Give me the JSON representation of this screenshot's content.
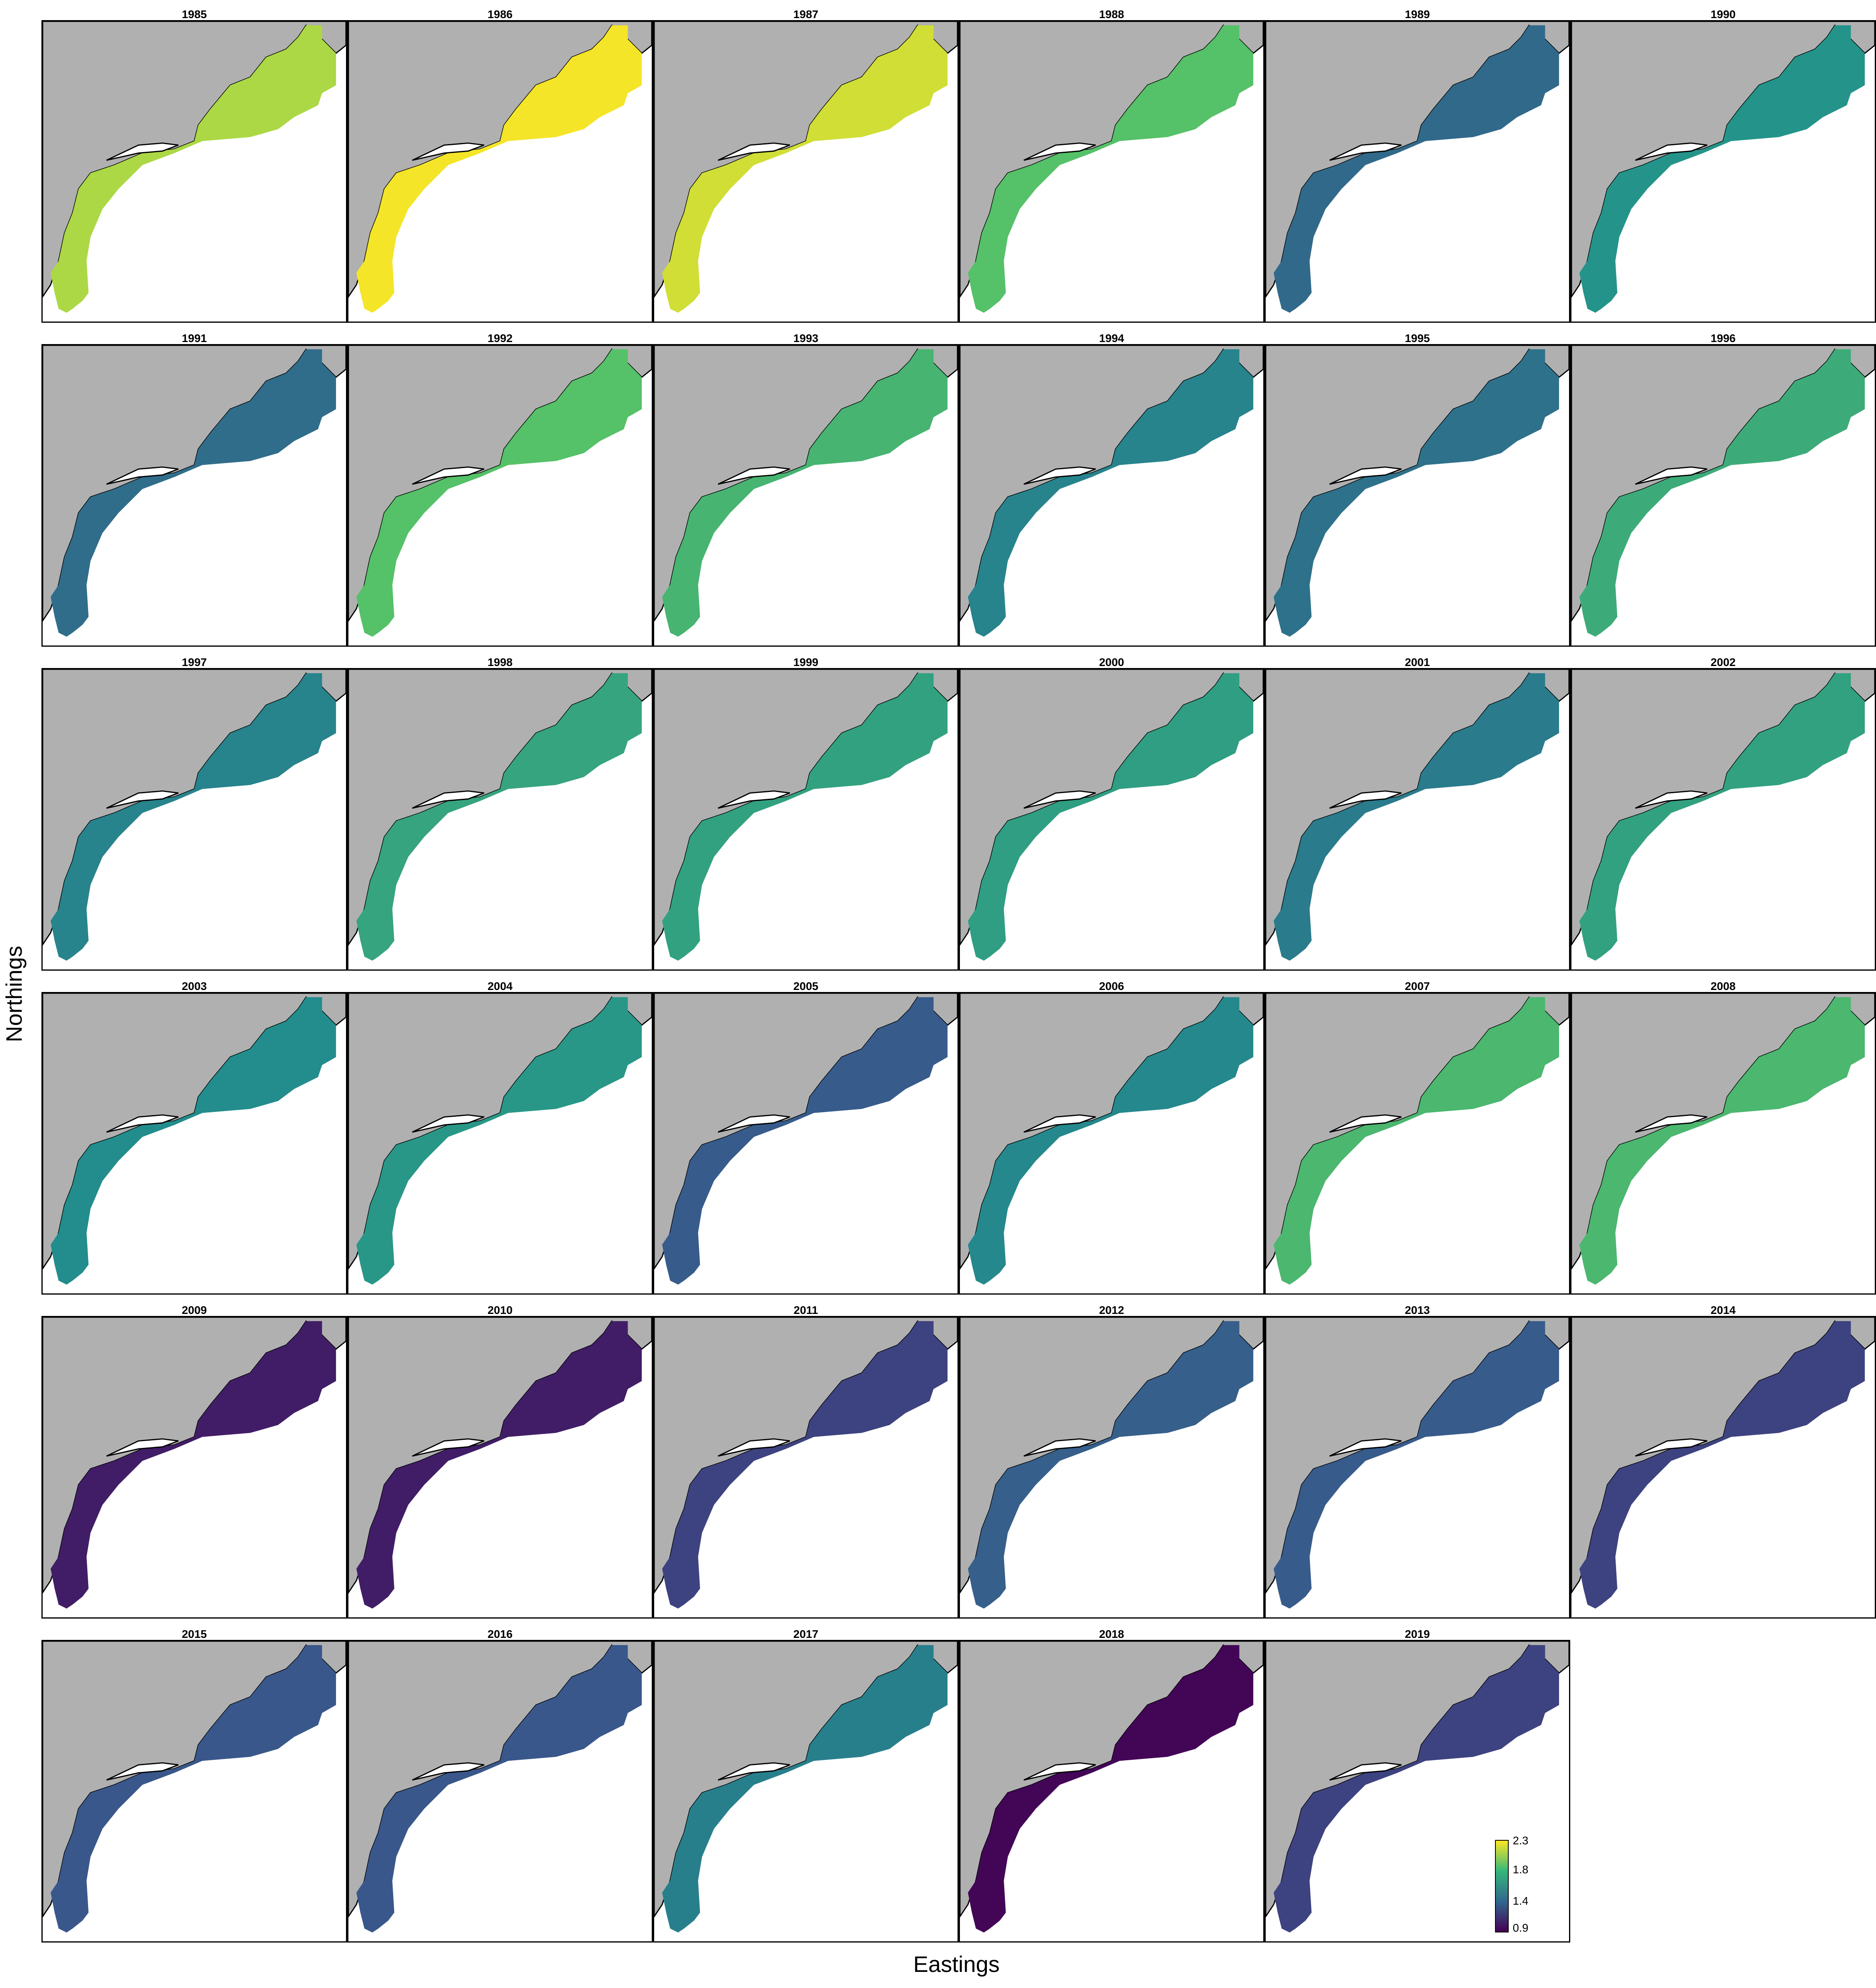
{
  "chart_data": {
    "type": "heatmap",
    "description_kind": "small-multiple maps of a single value per year over a shelf region",
    "xlabel": "Eastings",
    "ylabel": "Northings",
    "colorscale": "viridis",
    "color_range": [
      0.9,
      2.3
    ],
    "legend_ticks": [
      "2.3",
      "1.8",
      "1.4",
      "0.9"
    ],
    "legend_placement": "bottom-right",
    "panels": [
      {
        "year": "1985",
        "value": 2.12
      },
      {
        "year": "1986",
        "value": 2.28
      },
      {
        "year": "1987",
        "value": 2.2
      },
      {
        "year": "1988",
        "value": 1.9
      },
      {
        "year": "1989",
        "value": 1.38
      },
      {
        "year": "1990",
        "value": 1.62
      },
      {
        "year": "1991",
        "value": 1.4
      },
      {
        "year": "1992",
        "value": 1.9
      },
      {
        "year": "1993",
        "value": 1.82
      },
      {
        "year": "1994",
        "value": 1.52
      },
      {
        "year": "1995",
        "value": 1.42
      },
      {
        "year": "1996",
        "value": 1.76
      },
      {
        "year": "1997",
        "value": 1.52
      },
      {
        "year": "1998",
        "value": 1.72
      },
      {
        "year": "1999",
        "value": 1.7
      },
      {
        "year": "2000",
        "value": 1.68
      },
      {
        "year": "2001",
        "value": 1.48
      },
      {
        "year": "2002",
        "value": 1.7
      },
      {
        "year": "2003",
        "value": 1.58
      },
      {
        "year": "2004",
        "value": 1.64
      },
      {
        "year": "2005",
        "value": 1.3
      },
      {
        "year": "2006",
        "value": 1.55
      },
      {
        "year": "2007",
        "value": 1.84
      },
      {
        "year": "2008",
        "value": 1.84
      },
      {
        "year": "2009",
        "value": 1.02
      },
      {
        "year": "2010",
        "value": 1.02
      },
      {
        "year": "2011",
        "value": 1.18
      },
      {
        "year": "2012",
        "value": 1.32
      },
      {
        "year": "2013",
        "value": 1.3
      },
      {
        "year": "2014",
        "value": 1.18
      },
      {
        "year": "2015",
        "value": 1.28
      },
      {
        "year": "2016",
        "value": 1.28
      },
      {
        "year": "2017",
        "value": 1.5
      },
      {
        "year": "2018",
        "value": 0.92
      },
      {
        "year": "2019",
        "value": 1.18
      }
    ],
    "colors": {
      "land": "#b0b0b0",
      "water_background": "#ffffff",
      "outline": "#000000"
    }
  }
}
